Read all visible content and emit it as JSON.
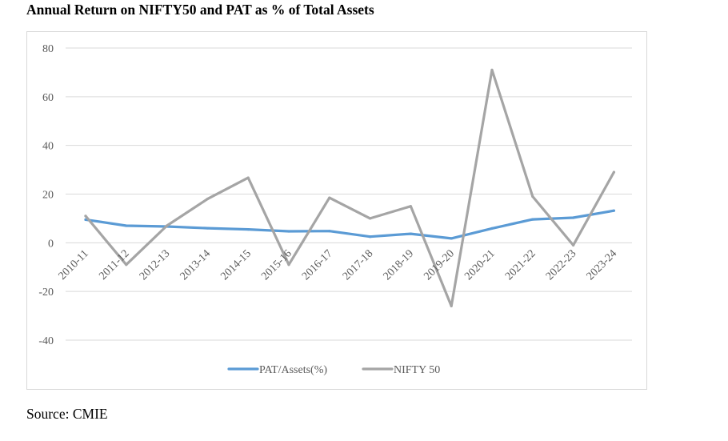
{
  "chart_data": {
    "type": "line",
    "title": "Annual Return on NIFTY50 and PAT as % of Total Assets",
    "xlabel": "",
    "ylabel": "",
    "categories": [
      "2010-11",
      "2011-12",
      "2012-13",
      "2013-14",
      "2014-15",
      "2015-16",
      "2016-17",
      "2017-18",
      "2018-19",
      "2019-20",
      "2020-21",
      "2021-22",
      "2022-23",
      "2023-24"
    ],
    "ylim": [
      -40,
      80
    ],
    "yticks": [
      "80",
      "60",
      "40",
      "20",
      "0",
      "-20",
      "-40"
    ],
    "grid": true,
    "legend_position": "bottom",
    "series": [
      {
        "name": "PAT/Assets(%)",
        "color": "#5b9bd5",
        "values": [
          9.5,
          7.0,
          6.7,
          6.0,
          5.5,
          4.7,
          4.8,
          2.5,
          3.7,
          1.8,
          5.9,
          9.6,
          10.3,
          13.2
        ]
      },
      {
        "name": "NIFTY 50",
        "color": "#a5a5a5",
        "values": [
          11.0,
          -9.0,
          7.0,
          18.0,
          26.7,
          -9.0,
          18.5,
          10.0,
          15.0,
          -26.0,
          71.0,
          19.0,
          -1.0,
          29.0
        ]
      }
    ]
  },
  "source": "Source: CMIE"
}
